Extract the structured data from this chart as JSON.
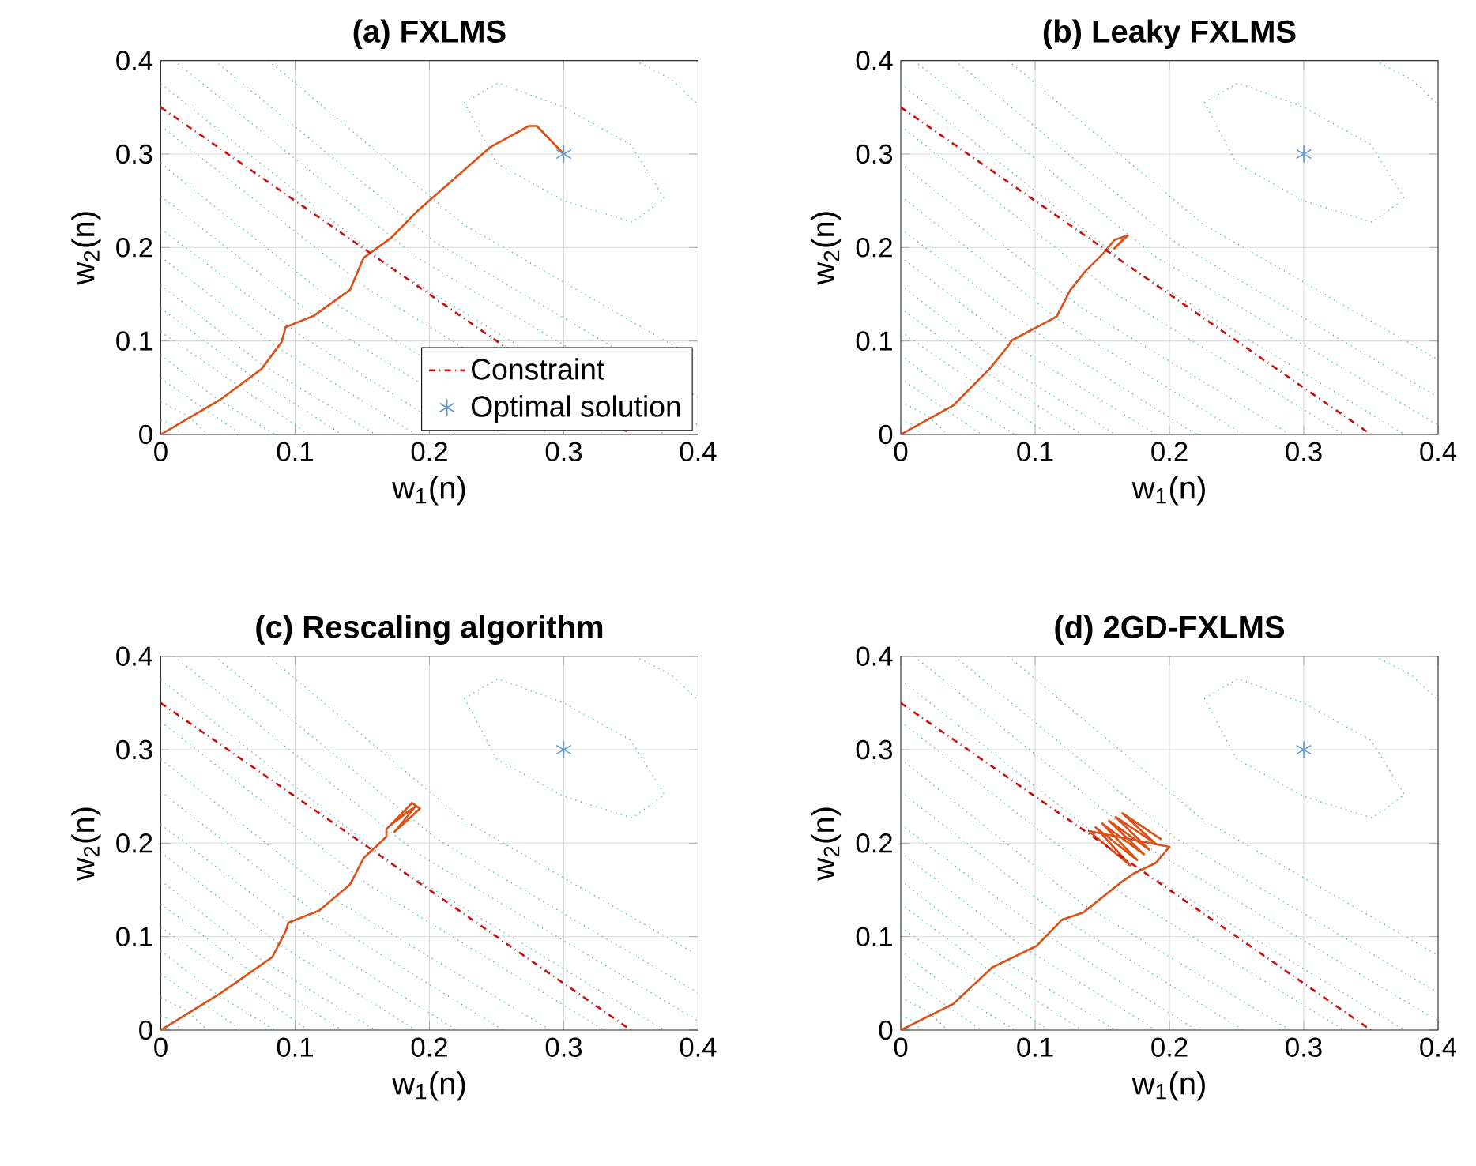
{
  "chart_data": [
    {
      "type": "line",
      "title": "(a) FXLMS",
      "xlabel": "w$_{1}$(n)",
      "ylabel": "w$_{2}$(n)",
      "xlim": [
        0,
        0.4
      ],
      "ylim": [
        0,
        0.4
      ],
      "xticks": [
        0,
        0.1,
        0.2,
        0.3,
        0.4
      ],
      "yticks": [
        0,
        0.1,
        0.2,
        0.3,
        0.4
      ],
      "grid": true,
      "legend": "bottom right",
      "series": [
        {
          "color": "#4db3a6",
          "line_style": "dotted",
          "marker": "none",
          "x": [
            0,
            0.01,
            0.015
          ],
          "values": [
            0.015,
            0.01,
            0
          ]
        },
        {
          "color": "#4db3a6",
          "line_style": "dotted",
          "marker": "none",
          "x": [
            0,
            0.02,
            0.035
          ],
          "values": [
            0.035,
            0.02,
            0
          ]
        },
        {
          "color": "#4db3a6",
          "line_style": "dotted",
          "marker": "none",
          "x": [
            0,
            0.03,
            0.06
          ],
          "values": [
            0.06,
            0.03,
            0
          ]
        },
        {
          "color": "#4db3a6",
          "line_style": "dotted",
          "marker": "none",
          "x": [
            0,
            0.04,
            0.085
          ],
          "values": [
            0.085,
            0.04,
            0
          ]
        },
        {
          "color": "#4db3a6",
          "line_style": "dotted",
          "marker": "none",
          "x": [
            0,
            0.055,
            0.11
          ],
          "values": [
            0.11,
            0.055,
            0
          ]
        },
        {
          "color": "#4db3a6",
          "line_style": "dotted",
          "marker": "none",
          "x": [
            0,
            0.065,
            0.135
          ],
          "values": [
            0.135,
            0.065,
            0
          ]
        },
        {
          "color": "#4db3a6",
          "line_style": "dotted",
          "marker": "none",
          "x": [
            0,
            0.075,
            0.16
          ],
          "values": [
            0.16,
            0.075,
            0
          ]
        },
        {
          "color": "#4db3a6",
          "line_style": "dotted",
          "marker": "none",
          "x": [
            0,
            0.09,
            0.19
          ],
          "values": [
            0.19,
            0.09,
            0
          ]
        },
        {
          "color": "#4db3a6",
          "line_style": "dotted",
          "marker": "none",
          "x": [
            0,
            0.105,
            0.22
          ],
          "values": [
            0.22,
            0.105,
            0
          ]
        },
        {
          "color": "#4db3a6",
          "line_style": "dotted",
          "marker": "none",
          "x": [
            0,
            0.12,
            0.255
          ],
          "values": [
            0.255,
            0.12,
            0
          ]
        },
        {
          "color": "#4db3a6",
          "line_style": "dotted",
          "marker": "none",
          "x": [
            0,
            0.135,
            0.29
          ],
          "values": [
            0.29,
            0.135,
            0
          ]
        },
        {
          "color": "#4db3a6",
          "line_style": "dotted",
          "marker": "none",
          "x": [
            0,
            0.155,
            0.33
          ],
          "values": [
            0.33,
            0.155,
            0
          ]
        },
        {
          "color": "#4db3a6",
          "line_style": "dotted",
          "marker": "none",
          "x": [
            0,
            0.175,
            0.375
          ],
          "values": [
            0.375,
            0.175,
            0
          ]
        },
        {
          "color": "#4db3a6",
          "line_style": "dotted",
          "marker": "none",
          "x": [
            0.01,
            0.19,
            0.4
          ],
          "values": [
            0.4,
            0.19,
            0.01
          ]
        },
        {
          "color": "#4db3a6",
          "line_style": "dotted",
          "marker": "none",
          "x": [
            0.04,
            0.205,
            0.4
          ],
          "values": [
            0.4,
            0.205,
            0.04
          ]
        },
        {
          "color": "#4db3a6",
          "line_style": "dotted",
          "marker": "none",
          "x": [
            0.08,
            0.225,
            0.4
          ],
          "values": [
            0.4,
            0.225,
            0.08
          ]
        },
        {
          "color": "#4db3a6",
          "line_style": "dotted",
          "marker": "none",
          "x": [
            0.353,
            0.38,
            0.4
          ],
          "values": [
            0.4,
            0.38,
            0.353
          ]
        },
        {
          "color": "#4db3a6",
          "line_style": "dotted",
          "marker": "none",
          "x": [
            0.226,
            0.251,
            0.3,
            0.35,
            0.375
          ],
          "values": [
            0.355,
            0.376,
            0.35,
            0.31,
            0.252
          ]
        },
        {
          "color": "#4db3a6",
          "line_style": "dotted",
          "marker": "none",
          "x": [
            0.226,
            0.25,
            0.3,
            0.351,
            0.375
          ],
          "values": [
            0.355,
            0.29,
            0.25,
            0.227,
            0.252
          ]
        },
        {
          "color": "#d95319",
          "line_style": "solid",
          "marker": "none",
          "x": [
            0,
            0.044,
            0.075,
            0.09,
            0.093,
            0.114,
            0.141,
            0.151,
            0.172,
            0.191,
            0.218,
            0.245,
            0.274,
            0.28,
            0.3
          ],
          "values": [
            0,
            0.037,
            0.07,
            0.099,
            0.115,
            0.127,
            0.155,
            0.189,
            0.211,
            0.239,
            0.273,
            0.307,
            0.33,
            0.33,
            0.3
          ]
        },
        {
          "name": "Constraint",
          "color": "#cc1010",
          "line_style": "dashdot",
          "marker": "none",
          "x": [
            0,
            0.35
          ],
          "values": [
            0.35,
            0
          ]
        },
        {
          "type": "scatter",
          "name": "Optimal solution",
          "color": "#5b9bd5",
          "marker": "cross",
          "x": [
            0.3
          ],
          "values": [
            0.3
          ]
        }
      ]
    },
    {
      "type": "line",
      "title": "(b) Leaky FXLMS",
      "xlabel": "w$_{1}$(n)",
      "ylabel": "w$_{2}$(n)",
      "xlim": [
        0,
        0.4
      ],
      "ylim": [
        0,
        0.4
      ],
      "xticks": [
        0,
        0.1,
        0.2,
        0.3,
        0.4
      ],
      "yticks": [
        0,
        0.1,
        0.2,
        0.3,
        0.4
      ],
      "grid": true,
      "series": [
        {
          "color": "#4db3a6",
          "line_style": "dotted",
          "marker": "none",
          "x": [
            0,
            0.01,
            0.015
          ],
          "values": [
            0.015,
            0.01,
            0
          ]
        },
        {
          "color": "#4db3a6",
          "line_style": "dotted",
          "marker": "none",
          "x": [
            0,
            0.02,
            0.035
          ],
          "values": [
            0.035,
            0.02,
            0
          ]
        },
        {
          "color": "#4db3a6",
          "line_style": "dotted",
          "marker": "none",
          "x": [
            0,
            0.03,
            0.06
          ],
          "values": [
            0.06,
            0.03,
            0
          ]
        },
        {
          "color": "#4db3a6",
          "line_style": "dotted",
          "marker": "none",
          "x": [
            0,
            0.04,
            0.085
          ],
          "values": [
            0.085,
            0.04,
            0
          ]
        },
        {
          "color": "#4db3a6",
          "line_style": "dotted",
          "marker": "none",
          "x": [
            0,
            0.055,
            0.11
          ],
          "values": [
            0.11,
            0.055,
            0
          ]
        },
        {
          "color": "#4db3a6",
          "line_style": "dotted",
          "marker": "none",
          "x": [
            0,
            0.065,
            0.135
          ],
          "values": [
            0.135,
            0.065,
            0
          ]
        },
        {
          "color": "#4db3a6",
          "line_style": "dotted",
          "marker": "none",
          "x": [
            0,
            0.075,
            0.16
          ],
          "values": [
            0.16,
            0.075,
            0
          ]
        },
        {
          "color": "#4db3a6",
          "line_style": "dotted",
          "marker": "none",
          "x": [
            0,
            0.09,
            0.19
          ],
          "values": [
            0.19,
            0.09,
            0
          ]
        },
        {
          "color": "#4db3a6",
          "line_style": "dotted",
          "marker": "none",
          "x": [
            0,
            0.105,
            0.22
          ],
          "values": [
            0.22,
            0.105,
            0
          ]
        },
        {
          "color": "#4db3a6",
          "line_style": "dotted",
          "marker": "none",
          "x": [
            0,
            0.12,
            0.255
          ],
          "values": [
            0.255,
            0.12,
            0
          ]
        },
        {
          "color": "#4db3a6",
          "line_style": "dotted",
          "marker": "none",
          "x": [
            0,
            0.135,
            0.29
          ],
          "values": [
            0.29,
            0.135,
            0
          ]
        },
        {
          "color": "#4db3a6",
          "line_style": "dotted",
          "marker": "none",
          "x": [
            0,
            0.155,
            0.33
          ],
          "values": [
            0.33,
            0.155,
            0
          ]
        },
        {
          "color": "#4db3a6",
          "line_style": "dotted",
          "marker": "none",
          "x": [
            0,
            0.175,
            0.375
          ],
          "values": [
            0.375,
            0.175,
            0
          ]
        },
        {
          "color": "#4db3a6",
          "line_style": "dotted",
          "marker": "none",
          "x": [
            0.01,
            0.19,
            0.4
          ],
          "values": [
            0.4,
            0.19,
            0.01
          ]
        },
        {
          "color": "#4db3a6",
          "line_style": "dotted",
          "marker": "none",
          "x": [
            0.04,
            0.205,
            0.4
          ],
          "values": [
            0.4,
            0.205,
            0.04
          ]
        },
        {
          "color": "#4db3a6",
          "line_style": "dotted",
          "marker": "none",
          "x": [
            0.08,
            0.225,
            0.4
          ],
          "values": [
            0.4,
            0.225,
            0.08
          ]
        },
        {
          "color": "#4db3a6",
          "line_style": "dotted",
          "marker": "none",
          "x": [
            0.353,
            0.38,
            0.4
          ],
          "values": [
            0.4,
            0.38,
            0.353
          ]
        },
        {
          "color": "#4db3a6",
          "line_style": "dotted",
          "marker": "none",
          "x": [
            0.226,
            0.251,
            0.3,
            0.35,
            0.375
          ],
          "values": [
            0.355,
            0.376,
            0.35,
            0.31,
            0.252
          ]
        },
        {
          "color": "#4db3a6",
          "line_style": "dotted",
          "marker": "none",
          "x": [
            0.226,
            0.25,
            0.3,
            0.351,
            0.375
          ],
          "values": [
            0.355,
            0.29,
            0.25,
            0.227,
            0.252
          ]
        },
        {
          "color": "#d95319",
          "line_style": "solid",
          "marker": "none",
          "x": [
            0,
            0.039,
            0.066,
            0.079,
            0.083,
            0.116,
            0.126,
            0.137,
            0.151,
            0.159,
            0.169,
            0.159,
            0.165,
            0.16
          ],
          "values": [
            0,
            0.031,
            0.07,
            0.093,
            0.101,
            0.126,
            0.154,
            0.174,
            0.194,
            0.208,
            0.213,
            0.199,
            0.208,
            0.2
          ]
        },
        {
          "color": "#cc1010",
          "line_style": "dashdot",
          "marker": "none",
          "x": [
            0,
            0.35
          ],
          "values": [
            0.35,
            0
          ]
        },
        {
          "type": "scatter",
          "color": "#5b9bd5",
          "marker": "cross",
          "x": [
            0.3
          ],
          "values": [
            0.3
          ]
        }
      ]
    },
    {
      "type": "line",
      "title": "(c) Rescaling algorithm",
      "xlabel": "w$_{1}$(n)",
      "ylabel": "w$_{2}$(n)",
      "xlim": [
        0,
        0.4
      ],
      "ylim": [
        0,
        0.4
      ],
      "xticks": [
        0,
        0.1,
        0.2,
        0.3,
        0.4
      ],
      "yticks": [
        0,
        0.1,
        0.2,
        0.3,
        0.4
      ],
      "grid": true,
      "series": [
        {
          "color": "#4db3a6",
          "line_style": "dotted",
          "marker": "none",
          "x": [
            0,
            0.01,
            0.015
          ],
          "values": [
            0.015,
            0.01,
            0
          ]
        },
        {
          "color": "#4db3a6",
          "line_style": "dotted",
          "marker": "none",
          "x": [
            0,
            0.02,
            0.035
          ],
          "values": [
            0.035,
            0.02,
            0
          ]
        },
        {
          "color": "#4db3a6",
          "line_style": "dotted",
          "marker": "none",
          "x": [
            0,
            0.03,
            0.06
          ],
          "values": [
            0.06,
            0.03,
            0
          ]
        },
        {
          "color": "#4db3a6",
          "line_style": "dotted",
          "marker": "none",
          "x": [
            0,
            0.04,
            0.085
          ],
          "values": [
            0.085,
            0.04,
            0
          ]
        },
        {
          "color": "#4db3a6",
          "line_style": "dotted",
          "marker": "none",
          "x": [
            0,
            0.055,
            0.11
          ],
          "values": [
            0.11,
            0.055,
            0
          ]
        },
        {
          "color": "#4db3a6",
          "line_style": "dotted",
          "marker": "none",
          "x": [
            0,
            0.065,
            0.135
          ],
          "values": [
            0.135,
            0.065,
            0
          ]
        },
        {
          "color": "#4db3a6",
          "line_style": "dotted",
          "marker": "none",
          "x": [
            0,
            0.075,
            0.16
          ],
          "values": [
            0.16,
            0.075,
            0
          ]
        },
        {
          "color": "#4db3a6",
          "line_style": "dotted",
          "marker": "none",
          "x": [
            0,
            0.09,
            0.19
          ],
          "values": [
            0.19,
            0.09,
            0
          ]
        },
        {
          "color": "#4db3a6",
          "line_style": "dotted",
          "marker": "none",
          "x": [
            0,
            0.105,
            0.22
          ],
          "values": [
            0.22,
            0.105,
            0
          ]
        },
        {
          "color": "#4db3a6",
          "line_style": "dotted",
          "marker": "none",
          "x": [
            0,
            0.12,
            0.255
          ],
          "values": [
            0.255,
            0.12,
            0
          ]
        },
        {
          "color": "#4db3a6",
          "line_style": "dotted",
          "marker": "none",
          "x": [
            0,
            0.135,
            0.29
          ],
          "values": [
            0.29,
            0.135,
            0
          ]
        },
        {
          "color": "#4db3a6",
          "line_style": "dotted",
          "marker": "none",
          "x": [
            0,
            0.155,
            0.33
          ],
          "values": [
            0.33,
            0.155,
            0
          ]
        },
        {
          "color": "#4db3a6",
          "line_style": "dotted",
          "marker": "none",
          "x": [
            0,
            0.175,
            0.375
          ],
          "values": [
            0.375,
            0.175,
            0
          ]
        },
        {
          "color": "#4db3a6",
          "line_style": "dotted",
          "marker": "none",
          "x": [
            0.01,
            0.19,
            0.4
          ],
          "values": [
            0.4,
            0.19,
            0.01
          ]
        },
        {
          "color": "#4db3a6",
          "line_style": "dotted",
          "marker": "none",
          "x": [
            0.04,
            0.205,
            0.4
          ],
          "values": [
            0.4,
            0.205,
            0.04
          ]
        },
        {
          "color": "#4db3a6",
          "line_style": "dotted",
          "marker": "none",
          "x": [
            0.08,
            0.225,
            0.4
          ],
          "values": [
            0.4,
            0.225,
            0.08
          ]
        },
        {
          "color": "#4db3a6",
          "line_style": "dotted",
          "marker": "none",
          "x": [
            0.353,
            0.38,
            0.4
          ],
          "values": [
            0.4,
            0.38,
            0.353
          ]
        },
        {
          "color": "#4db3a6",
          "line_style": "dotted",
          "marker": "none",
          "x": [
            0.226,
            0.251,
            0.3,
            0.35,
            0.375
          ],
          "values": [
            0.355,
            0.376,
            0.35,
            0.31,
            0.252
          ]
        },
        {
          "color": "#4db3a6",
          "line_style": "dotted",
          "marker": "none",
          "x": [
            0.226,
            0.25,
            0.3,
            0.351,
            0.375
          ],
          "values": [
            0.355,
            0.29,
            0.25,
            0.227,
            0.252
          ]
        },
        {
          "color": "#d95319",
          "line_style": "solid",
          "marker": "none",
          "x": [
            0,
            0.044,
            0.083,
            0.093,
            0.095,
            0.118,
            0.141,
            0.151,
            0.16,
            0.168,
            0.168,
            0.187,
            0.193,
            0.174,
            0.19,
            0.17,
            0.185
          ],
          "values": [
            0,
            0.039,
            0.078,
            0.106,
            0.115,
            0.128,
            0.156,
            0.184,
            0.196,
            0.207,
            0.215,
            0.243,
            0.237,
            0.212,
            0.24,
            0.218,
            0.235
          ]
        },
        {
          "color": "#cc1010",
          "line_style": "dashdot",
          "marker": "none",
          "x": [
            0,
            0.35
          ],
          "values": [
            0.35,
            0
          ]
        },
        {
          "type": "scatter",
          "color": "#5b9bd5",
          "marker": "cross",
          "x": [
            0.3
          ],
          "values": [
            0.3
          ]
        }
      ]
    },
    {
      "type": "line",
      "title": "(d) 2GD-FXLMS",
      "xlabel": "w$_{1}$(n)",
      "ylabel": "w$_{2}$(n)",
      "xlim": [
        0,
        0.4
      ],
      "ylim": [
        0,
        0.4
      ],
      "xticks": [
        0,
        0.1,
        0.2,
        0.3,
        0.4
      ],
      "yticks": [
        0,
        0.1,
        0.2,
        0.3,
        0.4
      ],
      "grid": true,
      "series": [
        {
          "color": "#4db3a6",
          "line_style": "dotted",
          "marker": "none",
          "x": [
            0,
            0.01,
            0.015
          ],
          "values": [
            0.015,
            0.01,
            0
          ]
        },
        {
          "color": "#4db3a6",
          "line_style": "dotted",
          "marker": "none",
          "x": [
            0,
            0.02,
            0.035
          ],
          "values": [
            0.035,
            0.02,
            0
          ]
        },
        {
          "color": "#4db3a6",
          "line_style": "dotted",
          "marker": "none",
          "x": [
            0,
            0.03,
            0.06
          ],
          "values": [
            0.06,
            0.03,
            0
          ]
        },
        {
          "color": "#4db3a6",
          "line_style": "dotted",
          "marker": "none",
          "x": [
            0,
            0.04,
            0.085
          ],
          "values": [
            0.085,
            0.04,
            0
          ]
        },
        {
          "color": "#4db3a6",
          "line_style": "dotted",
          "marker": "none",
          "x": [
            0,
            0.055,
            0.11
          ],
          "values": [
            0.11,
            0.055,
            0
          ]
        },
        {
          "color": "#4db3a6",
          "line_style": "dotted",
          "marker": "none",
          "x": [
            0,
            0.065,
            0.135
          ],
          "values": [
            0.135,
            0.065,
            0
          ]
        },
        {
          "color": "#4db3a6",
          "line_style": "dotted",
          "marker": "none",
          "x": [
            0,
            0.075,
            0.16
          ],
          "values": [
            0.16,
            0.075,
            0
          ]
        },
        {
          "color": "#4db3a6",
          "line_style": "dotted",
          "marker": "none",
          "x": [
            0,
            0.09,
            0.19
          ],
          "values": [
            0.19,
            0.09,
            0
          ]
        },
        {
          "color": "#4db3a6",
          "line_style": "dotted",
          "marker": "none",
          "x": [
            0,
            0.105,
            0.22
          ],
          "values": [
            0.22,
            0.105,
            0
          ]
        },
        {
          "color": "#4db3a6",
          "line_style": "dotted",
          "marker": "none",
          "x": [
            0,
            0.12,
            0.255
          ],
          "values": [
            0.255,
            0.12,
            0
          ]
        },
        {
          "color": "#4db3a6",
          "line_style": "dotted",
          "marker": "none",
          "x": [
            0,
            0.135,
            0.29
          ],
          "values": [
            0.29,
            0.135,
            0
          ]
        },
        {
          "color": "#4db3a6",
          "line_style": "dotted",
          "marker": "none",
          "x": [
            0,
            0.155,
            0.33
          ],
          "values": [
            0.33,
            0.155,
            0
          ]
        },
        {
          "color": "#4db3a6",
          "line_style": "dotted",
          "marker": "none",
          "x": [
            0,
            0.175,
            0.375
          ],
          "values": [
            0.375,
            0.175,
            0
          ]
        },
        {
          "color": "#4db3a6",
          "line_style": "dotted",
          "marker": "none",
          "x": [
            0.01,
            0.19,
            0.4
          ],
          "values": [
            0.4,
            0.19,
            0.01
          ]
        },
        {
          "color": "#4db3a6",
          "line_style": "dotted",
          "marker": "none",
          "x": [
            0.04,
            0.205,
            0.4
          ],
          "values": [
            0.4,
            0.205,
            0.04
          ]
        },
        {
          "color": "#4db3a6",
          "line_style": "dotted",
          "marker": "none",
          "x": [
            0.08,
            0.225,
            0.4
          ],
          "values": [
            0.4,
            0.225,
            0.08
          ]
        },
        {
          "color": "#4db3a6",
          "line_style": "dotted",
          "marker": "none",
          "x": [
            0.353,
            0.38,
            0.4
          ],
          "values": [
            0.4,
            0.38,
            0.353
          ]
        },
        {
          "color": "#4db3a6",
          "line_style": "dotted",
          "marker": "none",
          "x": [
            0.226,
            0.251,
            0.3,
            0.35,
            0.375
          ],
          "values": [
            0.355,
            0.376,
            0.35,
            0.31,
            0.252
          ]
        },
        {
          "color": "#4db3a6",
          "line_style": "dotted",
          "marker": "none",
          "x": [
            0.226,
            0.25,
            0.3,
            0.351,
            0.375
          ],
          "values": [
            0.355,
            0.29,
            0.25,
            0.227,
            0.252
          ]
        },
        {
          "color": "#d95319",
          "line_style": "solid",
          "marker": "none",
          "x": [
            0,
            0.039,
            0.068,
            0.101,
            0.12,
            0.136,
            0.163,
            0.174,
            0.19,
            0.2,
            0.14,
            0.171,
            0.145,
            0.176,
            0.15,
            0.181,
            0.155,
            0.185,
            0.16,
            0.19,
            0.165,
            0.194
          ],
          "values": [
            0,
            0.028,
            0.067,
            0.09,
            0.118,
            0.126,
            0.157,
            0.168,
            0.179,
            0.196,
            0.213,
            0.176,
            0.217,
            0.182,
            0.221,
            0.188,
            0.224,
            0.193,
            0.228,
            0.199,
            0.232,
            0.204
          ]
        },
        {
          "color": "#cc1010",
          "line_style": "dashdot",
          "marker": "none",
          "x": [
            0,
            0.35
          ],
          "values": [
            0.35,
            0
          ]
        },
        {
          "type": "scatter",
          "color": "#5b9bd5",
          "marker": "cross",
          "x": [
            0.3
          ],
          "values": [
            0.3
          ]
        }
      ]
    }
  ]
}
